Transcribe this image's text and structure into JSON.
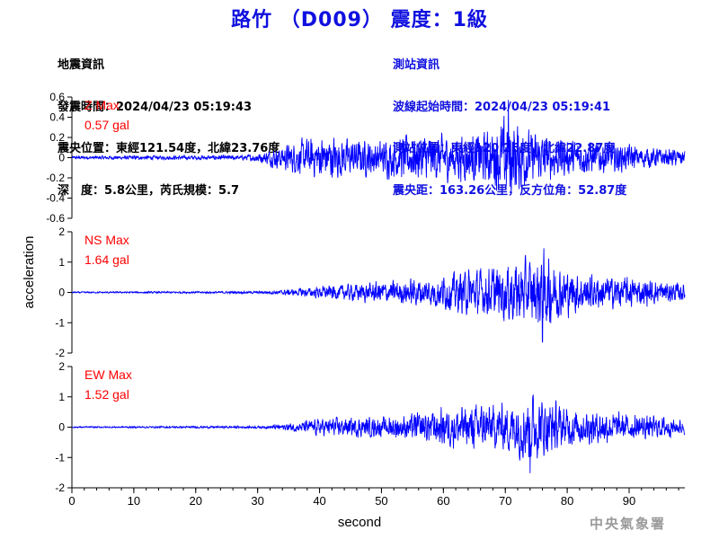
{
  "header": {
    "title": "路竹 （D009） 震度：1級"
  },
  "quake_info": {
    "heading": "地震資訊",
    "origin_time": "發震時間：2024/04/23 05:19:43",
    "epicenter": "震央位置：東經121.54度，北緯23.76度",
    "depth_magnitude": "深　度：5.8公里，芮氏規模：5.7"
  },
  "station_info": {
    "heading": "測站資訊",
    "wave_start": "波線起始時間：2024/04/23 05:19:41",
    "station_location": "測站位置：東經120.26度，北緯22.87度",
    "distance_azimuth": "震央距：163.26公里，反方位角：52.87度"
  },
  "footer": {
    "agency": "中央氣象署"
  },
  "colors": {
    "trace": "#0000ff",
    "title": "#1010e0",
    "annotation": "#ff0000",
    "axis": "#000000"
  },
  "chart_data": {
    "type": "line",
    "xlabel": "second",
    "ylabel": "acceleration",
    "xlim": [
      0,
      99
    ],
    "x_ticks": [
      0,
      10,
      20,
      30,
      40,
      50,
      60,
      70,
      80,
      90
    ],
    "grid": false,
    "panels": [
      {
        "name": "Z",
        "annotation_title": "Z Max",
        "annotation_value": "0.57 gal",
        "ylim": [
          -0.6,
          0.6
        ],
        "y_ticks": [
          -0.6,
          -0.4,
          -0.2,
          0,
          0.2,
          0.4,
          0.6
        ],
        "y_tick_labels": [
          "-0.6",
          "-0.4",
          "-0.2",
          "0",
          "0.2",
          "0.4",
          "0.6"
        ],
        "max_abs": 0.57,
        "peak_time": 70.5,
        "envelope": [
          [
            0,
            0.02
          ],
          [
            28,
            0.03
          ],
          [
            31,
            0.08
          ],
          [
            35,
            0.17
          ],
          [
            38,
            0.24
          ],
          [
            42,
            0.28
          ],
          [
            45,
            0.22
          ],
          [
            50,
            0.22
          ],
          [
            55,
            0.3
          ],
          [
            60,
            0.28
          ],
          [
            65,
            0.3
          ],
          [
            68,
            0.34
          ],
          [
            70.5,
            0.57
          ],
          [
            74,
            0.32
          ],
          [
            80,
            0.22
          ],
          [
            85,
            0.2
          ],
          [
            90,
            0.16
          ],
          [
            95,
            0.12
          ],
          [
            99,
            0.1
          ]
        ]
      },
      {
        "name": "NS",
        "annotation_title": "NS Max",
        "annotation_value": "1.64 gal",
        "ylim": [
          -2,
          2
        ],
        "y_ticks": [
          -2,
          -1,
          0,
          1,
          2
        ],
        "y_tick_labels": [
          "-2",
          "-1",
          "0",
          "1",
          "2"
        ],
        "max_abs": 1.64,
        "peak_time": 76,
        "envelope": [
          [
            0,
            0.03
          ],
          [
            31,
            0.05
          ],
          [
            35,
            0.12
          ],
          [
            40,
            0.25
          ],
          [
            45,
            0.35
          ],
          [
            50,
            0.45
          ],
          [
            55,
            0.55
          ],
          [
            60,
            0.7
          ],
          [
            63,
            0.9
          ],
          [
            67,
            1.0
          ],
          [
            70,
            1.2
          ],
          [
            74,
            1.4
          ],
          [
            76,
            1.64
          ],
          [
            79,
            1.0
          ],
          [
            83,
            0.75
          ],
          [
            88,
            0.65
          ],
          [
            93,
            0.55
          ],
          [
            99,
            0.35
          ]
        ]
      },
      {
        "name": "EW",
        "annotation_title": "EW Max",
        "annotation_value": "1.52 gal",
        "ylim": [
          -2,
          2
        ],
        "y_ticks": [
          -2,
          -1,
          0,
          1,
          2
        ],
        "y_tick_labels": [
          "-2",
          "-1",
          "0",
          "1",
          "2"
        ],
        "max_abs": 1.52,
        "peak_time": 74,
        "envelope": [
          [
            0,
            0.03
          ],
          [
            31,
            0.05
          ],
          [
            35,
            0.15
          ],
          [
            40,
            0.35
          ],
          [
            45,
            0.4
          ],
          [
            50,
            0.42
          ],
          [
            55,
            0.55
          ],
          [
            60,
            0.8
          ],
          [
            65,
            0.9
          ],
          [
            70,
            1.0
          ],
          [
            72,
            1.2
          ],
          [
            74,
            1.52
          ],
          [
            77,
            1.1
          ],
          [
            80,
            0.8
          ],
          [
            85,
            0.65
          ],
          [
            90,
            0.55
          ],
          [
            95,
            0.45
          ],
          [
            99,
            0.3
          ]
        ]
      }
    ]
  }
}
